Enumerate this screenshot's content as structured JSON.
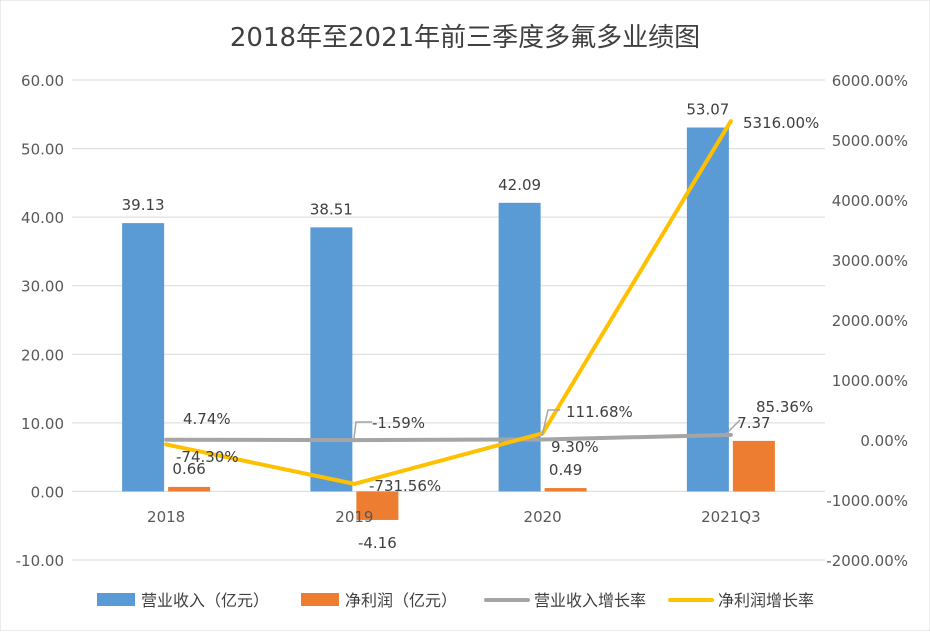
{
  "chart_data": {
    "type": "bar+line",
    "title": "2018年至2021年前三季度多氟多业绩图",
    "categories": [
      "2018",
      "2019",
      "2020",
      "2021Q3"
    ],
    "left_axis": {
      "min": -10,
      "max": 60,
      "step": 10,
      "tick_labels": [
        "-10.00",
        "0.00",
        "10.00",
        "20.00",
        "30.00",
        "40.00",
        "50.00",
        "60.00"
      ]
    },
    "right_axis": {
      "min": -2000,
      "max": 6000,
      "step": 1000,
      "tick_labels": [
        "-2000.00%",
        "-1000.00%",
        "0.00%",
        "1000.00%",
        "2000.00%",
        "3000.00%",
        "4000.00%",
        "5000.00%",
        "6000.00%"
      ]
    },
    "bar_series": [
      {
        "name": "营业收入（亿元）",
        "color": "#5B9BD5",
        "values": [
          39.13,
          38.51,
          42.09,
          53.07
        ],
        "labels": [
          "39.13",
          "38.51",
          "42.09",
          "53.07"
        ]
      },
      {
        "name": "净利润（亿元）",
        "color": "#ED7D31",
        "values": [
          0.66,
          -4.16,
          0.49,
          7.37
        ],
        "labels": [
          "0.66",
          "-4.16",
          "0.49",
          "7.37"
        ]
      }
    ],
    "line_series": [
      {
        "name": "营业收入增长率",
        "color": "#A5A5A5",
        "values": [
          4.74,
          -1.59,
          9.3,
          85.36
        ],
        "labels": [
          "4.74%",
          "-1.59%",
          "9.30%",
          "85.36%"
        ]
      },
      {
        "name": "净利润增长率",
        "color": "#FFC000",
        "values": [
          -74.3,
          -731.56,
          111.68,
          5316.0
        ],
        "labels": [
          "-74.30%",
          "-731.56%",
          "111.68%",
          "5316.00%"
        ]
      }
    ],
    "legend_position": "bottom",
    "grid": true
  }
}
